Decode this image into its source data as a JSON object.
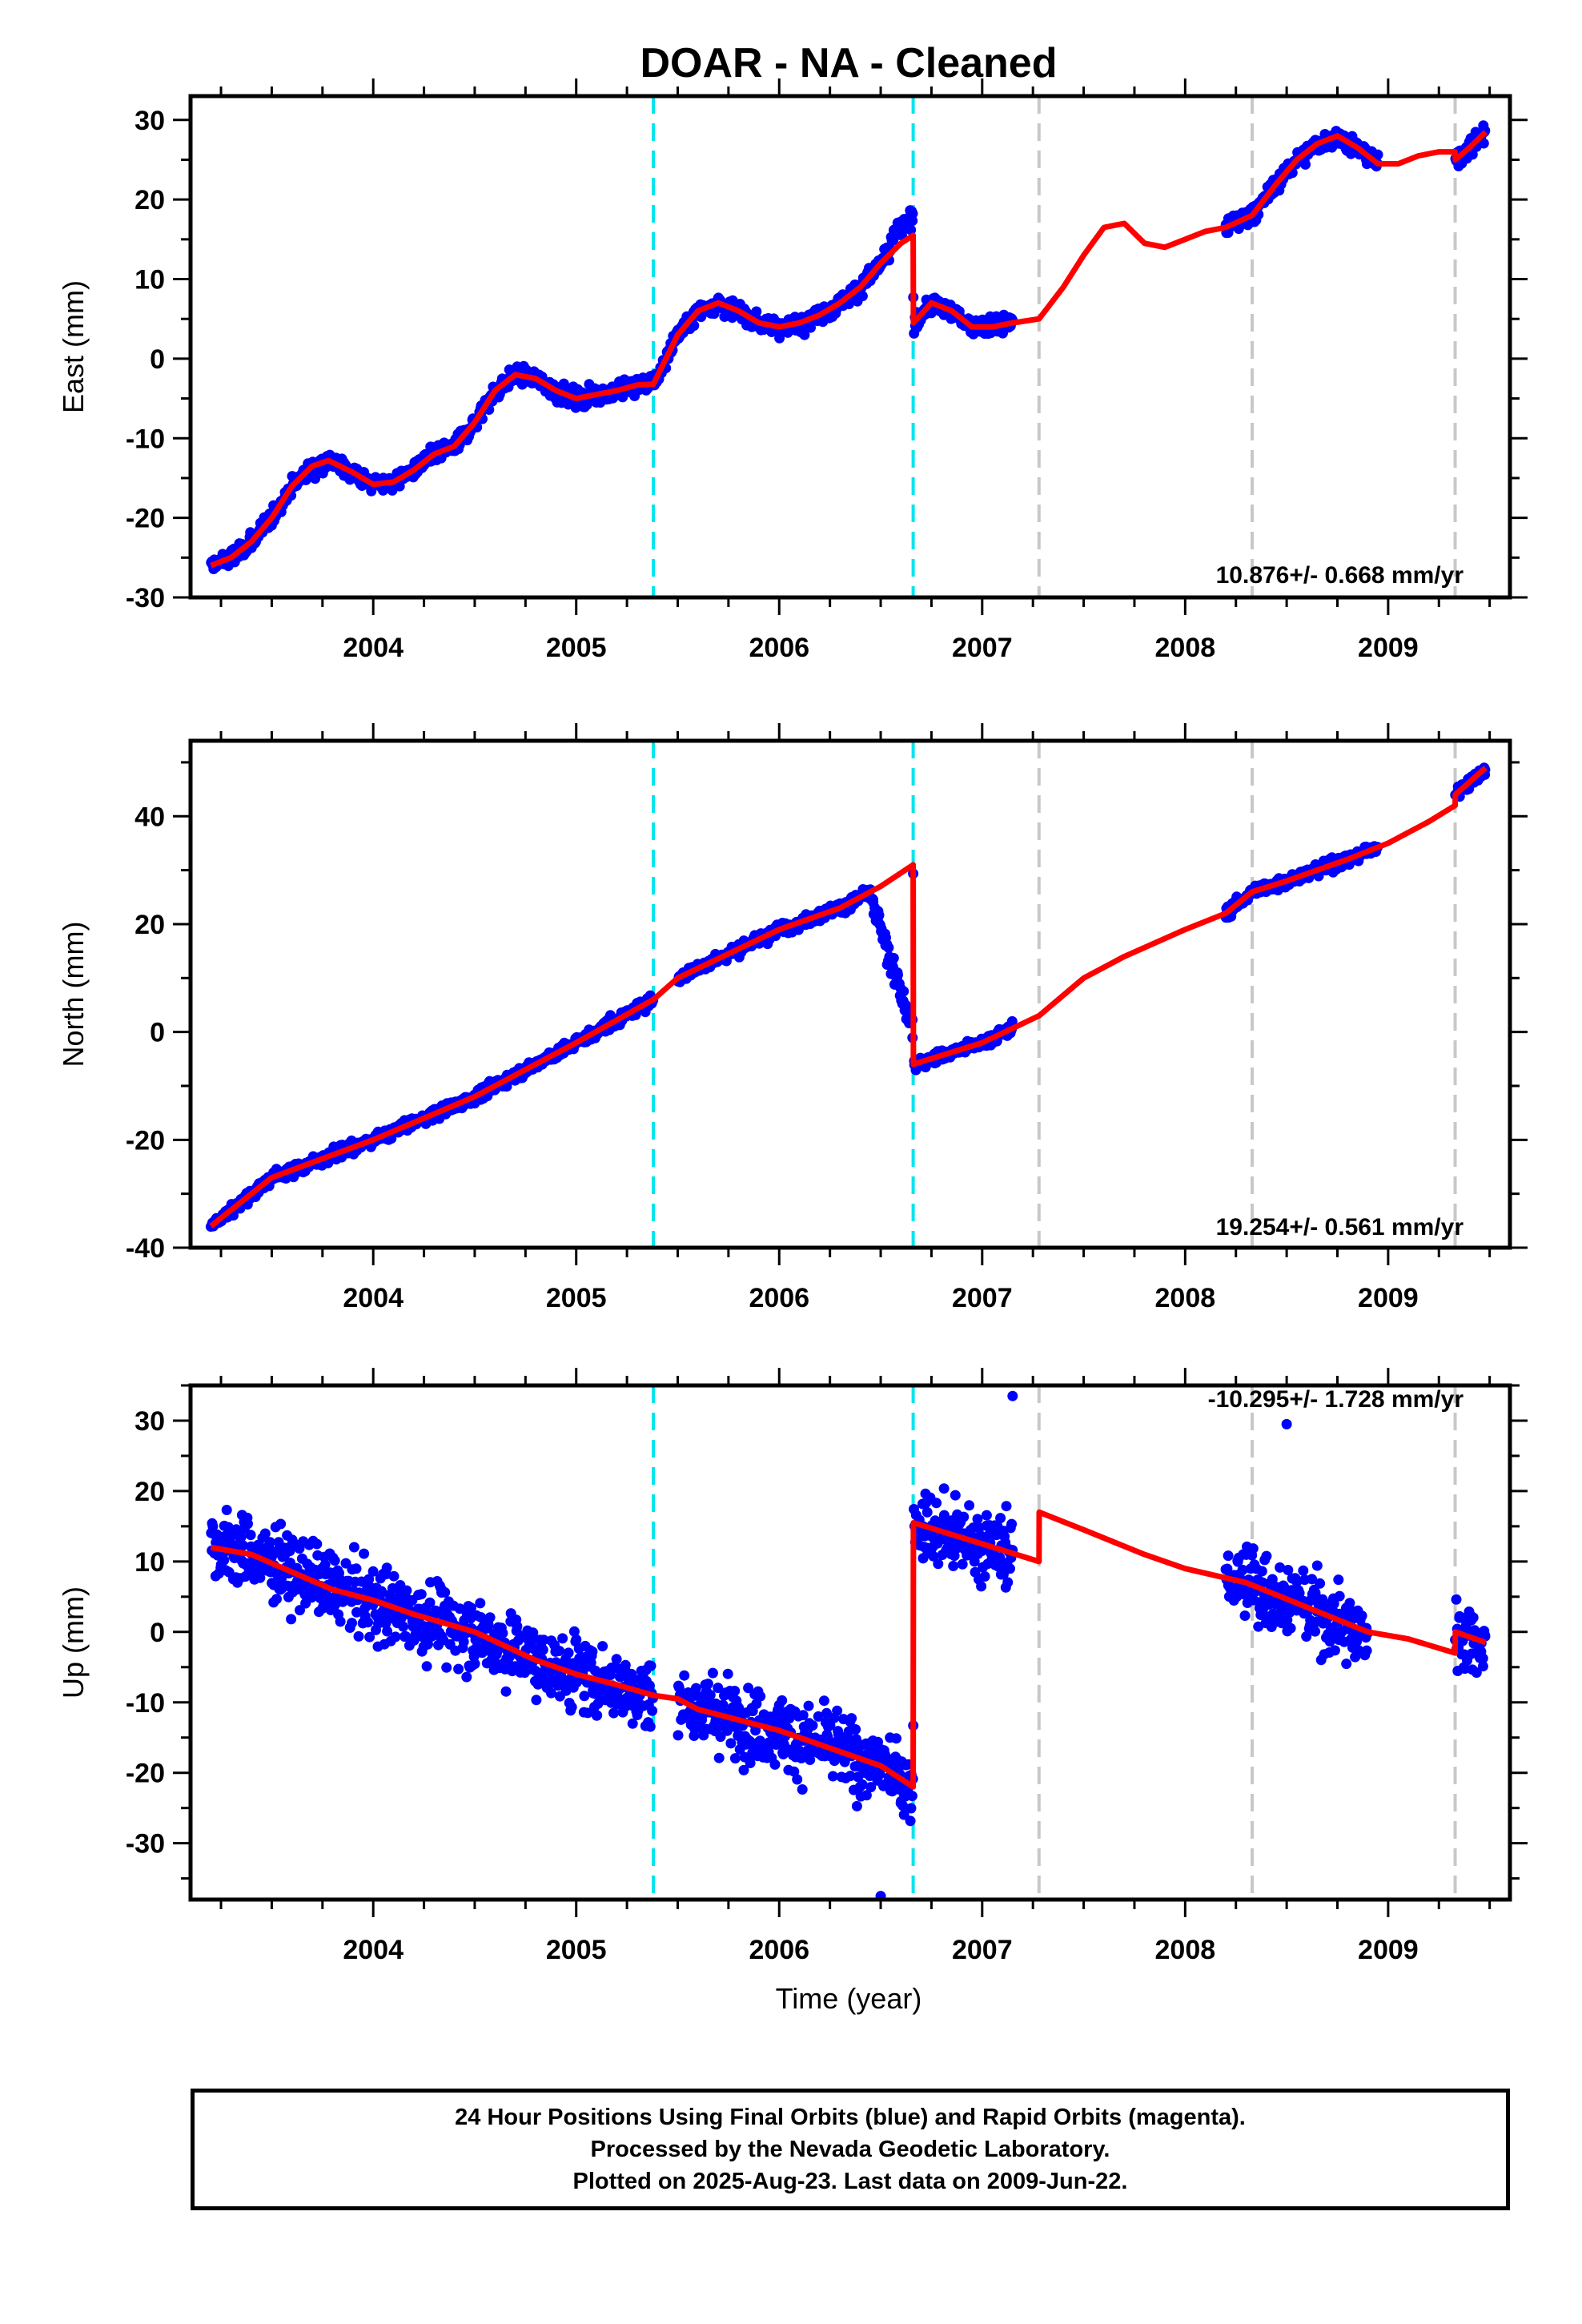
{
  "title": "DOAR  - NA - Cleaned",
  "xlabel": "Time (year)",
  "x_tick_labels": [
    "2004",
    "2005",
    "2006",
    "2007",
    "2008",
    "2009"
  ],
  "footer": {
    "line1": "24 Hour Positions Using Final Orbits (blue) and Rapid Orbits (magenta).",
    "line2": "Processed by the Nevada Geodetic Laboratory.",
    "line3": "Plotted on 2025-Aug-23. Last data on 2009-Jun-22."
  },
  "colors": {
    "data_points": "#0000ff",
    "model_line": "#ff0000",
    "equipment_change_lines": "#00e5ee",
    "other_event_lines": "#c8c8c8",
    "frame": "#000000"
  },
  "chart_data": [
    {
      "type": "scatter",
      "component": "east",
      "ylabel": "East (mm)",
      "rate_text": "10.876+/- 0.668 mm/yr",
      "xlim": [
        2003.1,
        2009.6
      ],
      "ylim": [
        -30,
        33
      ],
      "yticks": [
        -30,
        -20,
        -10,
        0,
        10,
        20,
        30
      ],
      "xticks": [
        2004,
        2005,
        2006,
        2007,
        2008,
        2009
      ],
      "cyan_dashed_x": [
        2005.38,
        2006.66
      ],
      "gray_dashed_x": [
        2007.28,
        2008.33,
        2009.33
      ],
      "model_line": {
        "x": [
          2003.2,
          2003.3,
          2003.4,
          2003.5,
          2003.6,
          2003.7,
          2003.78,
          2003.9,
          2004.0,
          2004.1,
          2004.2,
          2004.3,
          2004.4,
          2004.5,
          2004.6,
          2004.7,
          2004.8,
          2004.9,
          2005.0,
          2005.1,
          2005.2,
          2005.3,
          2005.38,
          2005.5,
          2005.6,
          2005.7,
          2005.8,
          2005.9,
          2006.0,
          2006.1,
          2006.2,
          2006.3,
          2006.4,
          2006.5,
          2006.6,
          2006.66,
          2006.661,
          2006.75,
          2006.85,
          2006.95,
          2007.05,
          2007.15,
          2007.28,
          2007.4,
          2007.5,
          2007.6,
          2007.7,
          2007.8,
          2007.9,
          2008.0,
          2008.1,
          2008.2,
          2008.33,
          2008.45,
          2008.55,
          2008.65,
          2008.75,
          2008.85,
          2008.95,
          2009.05,
          2009.15,
          2009.25,
          2009.33,
          2009.331,
          2009.4,
          2009.48
        ],
        "y": [
          -26,
          -25,
          -23,
          -20,
          -16,
          -13.5,
          -12.8,
          -14.3,
          -15.8,
          -15.5,
          -14,
          -12,
          -11,
          -8,
          -4,
          -2,
          -2.5,
          -4,
          -5,
          -4.5,
          -4,
          -3.3,
          -3.2,
          3,
          6,
          7,
          6,
          4.5,
          4,
          4.5,
          5.5,
          7,
          9,
          12,
          14.5,
          15.5,
          4.5,
          7,
          6,
          4,
          4,
          4.5,
          5,
          9,
          13,
          16.5,
          17,
          14.5,
          14,
          15,
          16,
          16.5,
          18,
          22,
          25,
          27,
          28,
          26.5,
          24.5,
          24.5,
          25.5,
          26,
          26,
          25,
          26.5,
          28.5
        ]
      },
      "points": {
        "segments": [
          {
            "x": [
              2003.2,
              2005.38
            ],
            "note": "dense daily positions"
          },
          {
            "x": [
              2005.38,
              2006.66
            ],
            "note": "dense daily positions"
          },
          {
            "x": [
              2006.66,
              2007.15
            ],
            "note": "dense daily positions"
          },
          {
            "x": [
              2008.2,
              2008.33
            ]
          },
          {
            "x": [
              2008.33,
              2008.95
            ]
          },
          {
            "x": [
              2009.33,
              2009.48
            ]
          }
        ],
        "scatter_mm": 1.3
      }
    },
    {
      "type": "scatter",
      "component": "north",
      "ylabel": "North (mm)",
      "rate_text": "19.254+/- 0.561 mm/yr",
      "xlim": [
        2003.1,
        2009.6
      ],
      "ylim": [
        -40,
        54
      ],
      "yticks": [
        -40,
        -20,
        0,
        20,
        40
      ],
      "xticks": [
        2004,
        2005,
        2006,
        2007,
        2008,
        2009
      ],
      "cyan_dashed_x": [
        2005.38,
        2006.66
      ],
      "gray_dashed_x": [
        2007.28,
        2008.33,
        2009.33
      ],
      "model_line": {
        "x": [
          2003.2,
          2003.5,
          2004.0,
          2004.5,
          2005.0,
          2005.38,
          2005.5,
          2006.0,
          2006.3,
          2006.5,
          2006.66,
          2006.661,
          2007.0,
          2007.28,
          2007.5,
          2007.7,
          2008.0,
          2008.2,
          2008.33,
          2008.5,
          2008.8,
          2009.0,
          2009.2,
          2009.33,
          2009.331,
          2009.48
        ],
        "y": [
          -36,
          -27,
          -20,
          -12,
          -2,
          6,
          10,
          19,
          23,
          27,
          31,
          -6,
          -2,
          3,
          10,
          14,
          19,
          22,
          26,
          28,
          32,
          35,
          39,
          42,
          44,
          49
        ]
      },
      "points": {
        "segments": [
          {
            "x": [
              2003.2,
              2005.38
            ]
          },
          {
            "x": [
              2005.5,
              2006.5
            ]
          },
          {
            "x": [
              2006.5,
              2006.66
            ],
            "note": "drops toward offset"
          },
          {
            "x": [
              2006.66,
              2007.15
            ]
          },
          {
            "x": [
              2008.2,
              2008.95
            ]
          },
          {
            "x": [
              2009.33,
              2009.48
            ]
          }
        ],
        "scatter_mm": 1.3
      }
    },
    {
      "type": "scatter",
      "component": "up",
      "ylabel": "Up (mm)",
      "rate_text": "-10.295+/- 1.728 mm/yr",
      "xlim": [
        2003.1,
        2009.6
      ],
      "ylim": [
        -38,
        35
      ],
      "yticks": [
        -30,
        -20,
        -10,
        0,
        10,
        20,
        30
      ],
      "xticks": [
        2004,
        2005,
        2006,
        2007,
        2008,
        2009
      ],
      "cyan_dashed_x": [
        2005.38,
        2006.66
      ],
      "gray_dashed_x": [
        2007.28,
        2008.33,
        2009.33
      ],
      "model_line": {
        "x": [
          2003.2,
          2003.4,
          2003.6,
          2003.8,
          2004.0,
          2004.2,
          2004.5,
          2004.8,
          2005.0,
          2005.2,
          2005.38,
          2005.5,
          2005.6,
          2006.0,
          2006.3,
          2006.5,
          2006.66,
          2006.661,
          2007.0,
          2007.28,
          2007.281,
          2007.5,
          2007.8,
          2008.0,
          2008.3,
          2008.6,
          2008.9,
          2009.1,
          2009.33,
          2009.331,
          2009.48
        ],
        "y": [
          12,
          11,
          8.5,
          6,
          4.5,
          2.5,
          0,
          -4,
          -6,
          -7.5,
          -9,
          -9.5,
          -11,
          -14,
          -17,
          -19,
          -22,
          15.5,
          12.5,
          10,
          17,
          14.5,
          11,
          9,
          7,
          3.5,
          0,
          -1,
          -3,
          0,
          -1.5
        ]
      },
      "points": {
        "segments": [
          {
            "x": [
              2003.2,
              2005.38
            ],
            "note": "noisy"
          },
          {
            "x": [
              2005.5,
              2006.66
            ],
            "note": "noisy"
          },
          {
            "x": [
              2006.66,
              2007.15
            ],
            "note": "noisy"
          },
          {
            "x": [
              2008.2,
              2008.9
            ],
            "note": "noisy"
          },
          {
            "x": [
              2009.33,
              2009.48
            ],
            "note": "noisy"
          }
        ],
        "scatter_mm": 6,
        "outliers": [
          [
            2007.15,
            33.5
          ],
          [
            2008.5,
            29.5
          ],
          [
            2006.5,
            -37.5
          ]
        ]
      }
    }
  ]
}
